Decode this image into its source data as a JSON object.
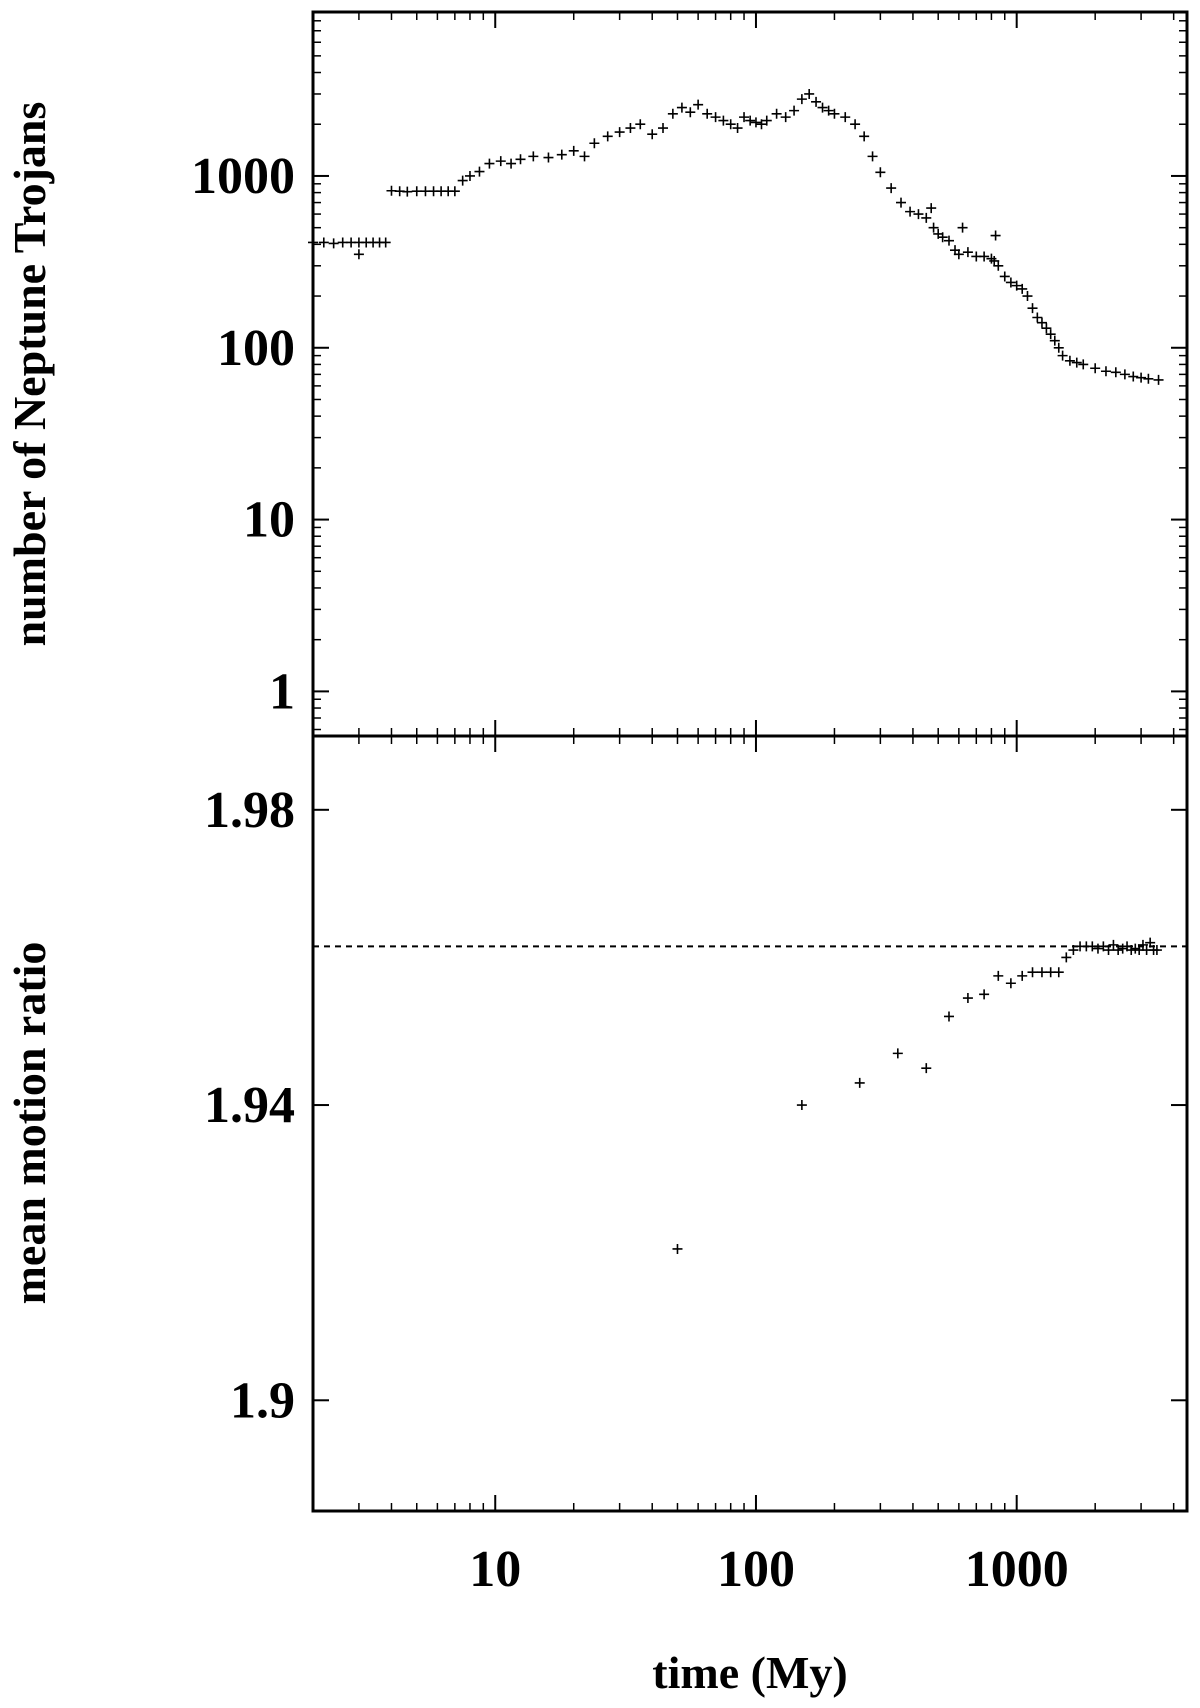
{
  "chart_data": [
    {
      "type": "scatter",
      "panel": "top",
      "ylabel": "number of Neptune Trojans",
      "yscale": "log",
      "xscale": "log",
      "xlim": [
        2,
        4500
      ],
      "ylim": [
        0.55,
        9000
      ],
      "yticks": [
        {
          "value": 1,
          "label": "1"
        },
        {
          "value": 10,
          "label": "10"
        },
        {
          "value": 100,
          "label": "100"
        },
        {
          "value": 1000,
          "label": "1000"
        }
      ],
      "series": [
        {
          "marker": "+",
          "x": [
            2.0,
            2.2,
            2.4,
            2.6,
            2.8,
            3.0,
            3.2,
            3.4,
            3.6,
            3.8,
            3.0,
            4.0,
            4.3,
            4.6,
            5.0,
            5.4,
            5.8,
            6.2,
            6.6,
            7.0,
            7.5,
            8.0,
            8.7,
            9.5,
            10.5,
            11.5,
            12.5,
            14,
            16,
            18,
            20,
            22,
            24,
            27,
            30,
            33,
            36,
            40,
            44,
            48,
            52,
            56,
            60,
            65,
            70,
            75,
            80,
            85,
            90,
            95,
            100,
            105,
            110,
            120,
            130,
            140,
            150,
            160,
            170,
            180,
            190,
            200,
            220,
            240,
            260,
            280,
            300,
            330,
            360,
            390,
            420,
            450,
            470,
            480,
            500,
            520,
            550,
            580,
            600,
            620,
            650,
            700,
            750,
            800,
            820,
            830,
            850,
            900,
            950,
            1000,
            1050,
            1100,
            1150,
            1200,
            1250,
            1300,
            1350,
            1400,
            1450,
            1500,
            1600,
            1700,
            1800,
            2000,
            2200,
            2400,
            2600,
            2800,
            3000,
            3200,
            3500
          ],
          "y": [
            410,
            410,
            405,
            410,
            410,
            410,
            410,
            410,
            410,
            410,
            350,
            820,
            815,
            810,
            815,
            815,
            815,
            815,
            815,
            815,
            940,
            1000,
            1060,
            1180,
            1220,
            1180,
            1250,
            1300,
            1280,
            1330,
            1400,
            1300,
            1550,
            1700,
            1800,
            1900,
            2000,
            1750,
            1900,
            2300,
            2500,
            2350,
            2600,
            2300,
            2200,
            2100,
            2000,
            1900,
            2200,
            2100,
            2050,
            2000,
            2100,
            2300,
            2200,
            2400,
            2800,
            3000,
            2700,
            2500,
            2400,
            2300,
            2200,
            2000,
            1700,
            1300,
            1050,
            850,
            700,
            620,
            600,
            570,
            650,
            500,
            460,
            440,
            420,
            370,
            350,
            500,
            360,
            340,
            340,
            330,
            320,
            450,
            300,
            260,
            240,
            230,
            220,
            200,
            170,
            150,
            140,
            130,
            120,
            110,
            100,
            90,
            84,
            82,
            80,
            76,
            73,
            72,
            70,
            68,
            67,
            66,
            65
          ]
        }
      ]
    },
    {
      "type": "scatter",
      "panel": "bottom",
      "xlabel": "time (My)",
      "ylabel": "mean motion ratio",
      "xscale": "log",
      "xlim": [
        2,
        4500
      ],
      "ylim": [
        1.885,
        1.99
      ],
      "xticks": [
        {
          "value": 10,
          "label": "10"
        },
        {
          "value": 100,
          "label": "100"
        },
        {
          "value": 1000,
          "label": "1000"
        }
      ],
      "yticks": [
        {
          "value": 1.9,
          "label": "1.9"
        },
        {
          "value": 1.94,
          "label": "1.94"
        },
        {
          "value": 1.98,
          "label": "1.98"
        }
      ],
      "reference_line": {
        "y": 1.9615,
        "style": "dashed"
      },
      "series": [
        {
          "marker": "+",
          "x": [
            50,
            150,
            250,
            350,
            450,
            550,
            650,
            750,
            850,
            950,
            1050,
            1150,
            1250,
            1350,
            1450,
            1550,
            1650,
            1750,
            1850,
            1950,
            2050,
            2150,
            2250,
            2350,
            2450,
            2550,
            2650,
            2750,
            2850,
            2950,
            3050,
            3150,
            3250,
            3350,
            3450
          ],
          "y": [
            1.9205,
            1.94,
            1.943,
            1.947,
            1.945,
            1.952,
            1.9545,
            1.955,
            1.9575,
            1.9565,
            1.9575,
            1.958,
            1.958,
            1.958,
            1.958,
            1.96,
            1.961,
            1.9615,
            1.9615,
            1.9615,
            1.9612,
            1.9615,
            1.961,
            1.9617,
            1.961,
            1.9612,
            1.9615,
            1.961,
            1.9612,
            1.961,
            1.9617,
            1.961,
            1.962,
            1.961,
            1.961
          ]
        }
      ]
    }
  ]
}
